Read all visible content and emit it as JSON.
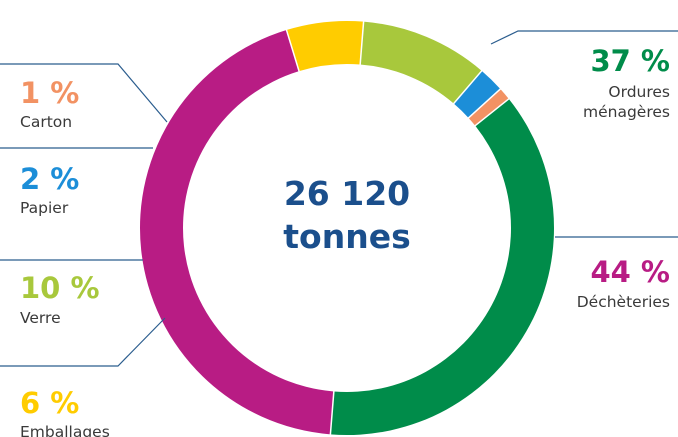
{
  "chart_data": {
    "type": "pie",
    "variant": "donut",
    "center_text": [
      "26 120",
      "tonnes"
    ],
    "slices": [
      {
        "label": "Ordures ménagères",
        "label_lines": [
          "Ordures",
          "ménagères"
        ],
        "percent_text": "37 %",
        "value": 37,
        "color": "#008c4a"
      },
      {
        "label": "Déchèteries",
        "label_lines": [
          "Déchèteries"
        ],
        "percent_text": "44 %",
        "value": 44,
        "color": "#b81c84"
      },
      {
        "label": "Emballages",
        "label_lines": [
          "Emballages"
        ],
        "percent_text": "6 %",
        "value": 6,
        "color": "#ffcc00"
      },
      {
        "label": "Verre",
        "label_lines": [
          "Verre"
        ],
        "percent_text": "10 %",
        "value": 10,
        "color": "#a8c83c"
      },
      {
        "label": "Papier",
        "label_lines": [
          "Papier"
        ],
        "percent_text": "2 %",
        "value": 2,
        "color": "#1c8ed8"
      },
      {
        "label": "Carton",
        "label_lines": [
          "Carton"
        ],
        "percent_text": "1 %",
        "value": 1,
        "color": "#f29263"
      }
    ],
    "legend_placement": "labels around the ring with leader lines"
  }
}
